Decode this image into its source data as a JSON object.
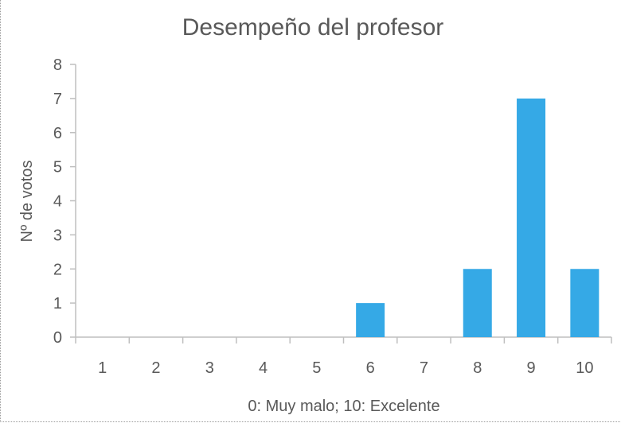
{
  "chart_data": {
    "type": "bar",
    "title": "Desempeño del profesor",
    "xlabel": "0: Muy malo; 10: Excelente",
    "ylabel": "Nº de votos",
    "categories": [
      "1",
      "2",
      "3",
      "4",
      "5",
      "6",
      "7",
      "8",
      "9",
      "10"
    ],
    "values": [
      0,
      0,
      0,
      0,
      0,
      1,
      0,
      2,
      7,
      2
    ],
    "ylim": [
      0,
      8
    ],
    "yticks": [
      "0",
      "1",
      "2",
      "3",
      "4",
      "5",
      "6",
      "7",
      "8"
    ],
    "grid": false,
    "bar_color": "#35A9E6",
    "axis_color": "#BFBFBF"
  }
}
